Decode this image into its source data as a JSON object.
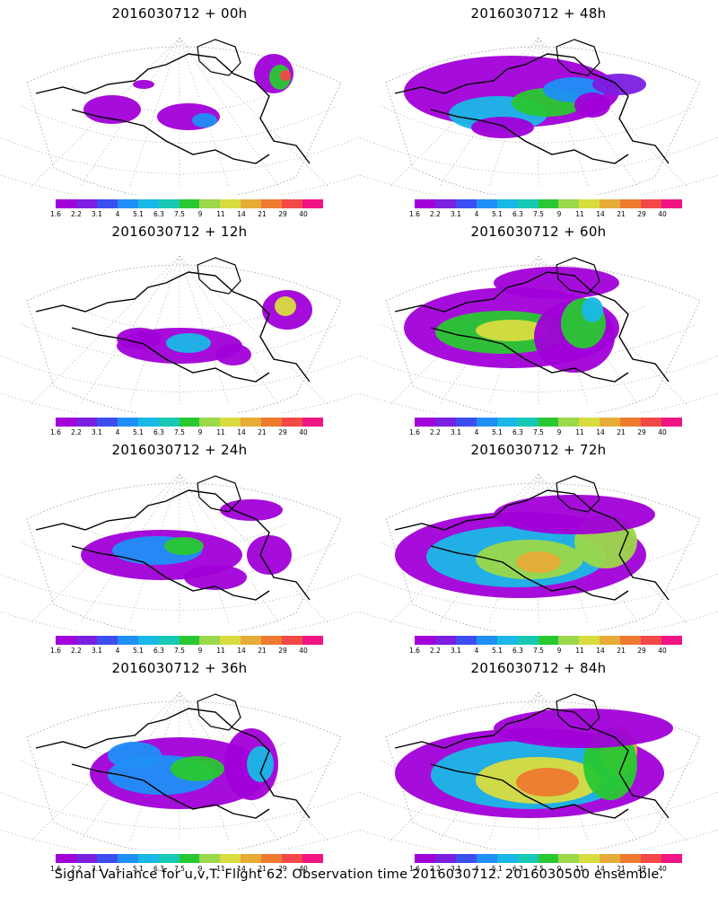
{
  "panels": [
    {
      "title": "2016030712 + 00h",
      "lead_hours": 0
    },
    {
      "title": "2016030712 + 48h",
      "lead_hours": 48
    },
    {
      "title": "2016030712 + 12h",
      "lead_hours": 12
    },
    {
      "title": "2016030712 + 60h",
      "lead_hours": 60
    },
    {
      "title": "2016030712 + 24h",
      "lead_hours": 24
    },
    {
      "title": "2016030712 + 72h",
      "lead_hours": 72
    },
    {
      "title": "2016030712 + 36h",
      "lead_hours": 36
    },
    {
      "title": "2016030712 + 84h",
      "lead_hours": 84
    }
  ],
  "colorbar": {
    "labels": [
      "1.6",
      "2.2",
      "3.1",
      "4",
      "5.1",
      "6.3",
      "7.5",
      "9",
      "11",
      "14",
      "21",
      "29",
      "40"
    ],
    "colors": [
      "#a100d8",
      "#7b1fe0",
      "#3d4ef0",
      "#1f8ff5",
      "#19b8e6",
      "#17c9b4",
      "#29c832",
      "#9bd84a",
      "#d8dc3f",
      "#e6ac37",
      "#ee7a30",
      "#f24848",
      "#f01484"
    ]
  },
  "caption": "Signal Variance for u,v,T. Flight 62. Observation time 2016030712. 2016030500 ensemble."
}
